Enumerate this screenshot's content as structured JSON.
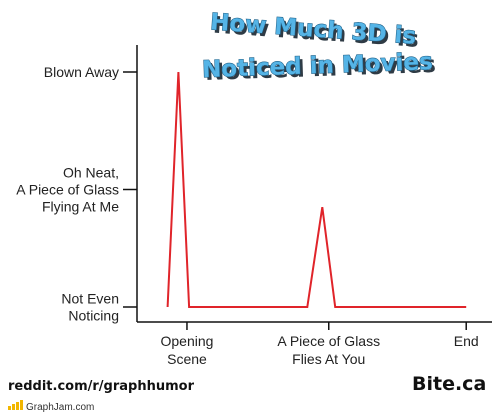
{
  "chart_data": {
    "type": "line",
    "title_lines": [
      "How Much 3D is",
      "Noticed in Movies"
    ],
    "ylabel": "",
    "xlabel": "",
    "ylim": [
      0,
      2.3
    ],
    "xlim": [
      0,
      8.1
    ],
    "y_ticks": [
      {
        "value": 0,
        "lines": [
          "Not Even",
          "Noticing"
        ]
      },
      {
        "value": 1,
        "lines": [
          "Oh Neat,",
          "A Piece of Glass",
          "Flying At Me"
        ]
      },
      {
        "value": 2,
        "lines": [
          "Blown Away"
        ]
      }
    ],
    "x_ticks": [
      {
        "value": 1,
        "lines": [
          "Opening",
          "Scene"
        ]
      },
      {
        "value": 4.3,
        "lines": [
          "A Piece of Glass",
          "Flies At You"
        ]
      },
      {
        "value": 7.5,
        "lines": [
          "End"
        ]
      }
    ],
    "series": [
      {
        "color": "#e0242a",
        "x": [
          0.55,
          0.8,
          1.05,
          3.8,
          4.15,
          4.45,
          7.5
        ],
        "y": [
          0,
          2.0,
          0,
          0,
          0.85,
          0,
          0
        ]
      }
    ],
    "grid": false,
    "legend": "none"
  },
  "footer": {
    "source": "reddit.com/r/graphhumor",
    "brand": "Bite.ca",
    "site": "GraphJam.com"
  }
}
